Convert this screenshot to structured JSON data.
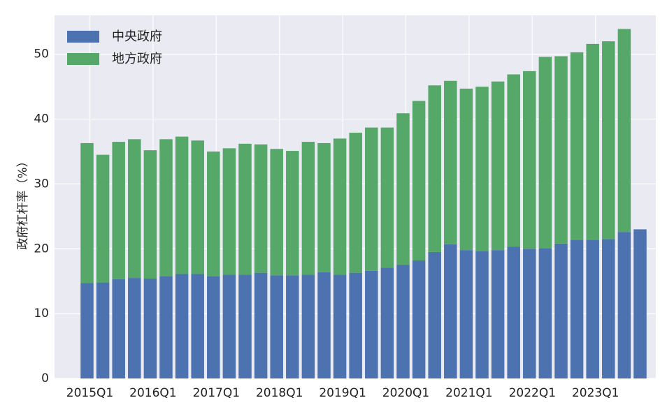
{
  "chart_data": {
    "type": "bar",
    "stacked": true,
    "ylabel": "政府杠杆率（%）",
    "xlabel": "",
    "ylim": [
      0,
      56
    ],
    "yticks": [
      0,
      10,
      20,
      30,
      40,
      50
    ],
    "grid": true,
    "legend_position": "top-left",
    "xtick_labels": [
      "2015Q1",
      "2016Q1",
      "2017Q1",
      "2018Q1",
      "2019Q1",
      "2020Q1",
      "2021Q1",
      "2022Q1",
      "2023Q1"
    ],
    "categories": [
      "2015Q1",
      "2015Q2",
      "2015Q3",
      "2015Q4",
      "2016Q1",
      "2016Q2",
      "2016Q3",
      "2016Q4",
      "2017Q1",
      "2017Q2",
      "2017Q3",
      "2017Q4",
      "2018Q1",
      "2018Q2",
      "2018Q3",
      "2018Q4",
      "2019Q1",
      "2019Q2",
      "2019Q3",
      "2019Q4",
      "2020Q1",
      "2020Q2",
      "2020Q3",
      "2020Q4",
      "2021Q1",
      "2021Q2",
      "2021Q3",
      "2021Q4",
      "2022Q1",
      "2022Q2",
      "2022Q3",
      "2022Q4",
      "2023Q1",
      "2023Q2",
      "2023Q3",
      "2023Q4"
    ],
    "series": [
      {
        "name": "中央政府",
        "color": "#4c72b0",
        "values": [
          14.7,
          14.8,
          15.3,
          15.5,
          15.4,
          15.8,
          16.1,
          16.1,
          15.8,
          16.0,
          16.0,
          16.3,
          15.9,
          15.9,
          16.0,
          16.4,
          16.0,
          16.3,
          16.6,
          17.1,
          17.5,
          18.2,
          19.5,
          20.7,
          19.8,
          19.6,
          19.8,
          20.3,
          20.0,
          20.1,
          20.8,
          21.4,
          21.4,
          21.5,
          22.6,
          23.0
        ]
      },
      {
        "name": "地方政府",
        "color": "#55a868",
        "values": [
          21.6,
          19.7,
          21.2,
          21.4,
          19.8,
          21.1,
          21.2,
          20.6,
          19.2,
          19.5,
          20.2,
          19.8,
          19.5,
          19.2,
          20.5,
          19.9,
          21.0,
          21.6,
          22.1,
          21.6,
          23.4,
          24.6,
          25.7,
          25.2,
          24.9,
          25.4,
          26.0,
          26.6,
          27.4,
          29.5,
          28.9,
          28.9,
          30.2,
          30.5,
          31.3,
          0
        ]
      }
    ]
  }
}
